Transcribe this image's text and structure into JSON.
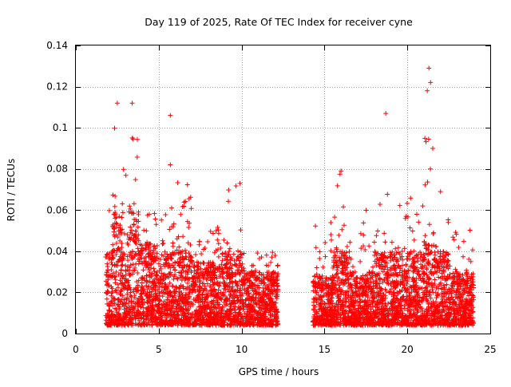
{
  "chart_data": {
    "type": "scatter",
    "title": "Day 119 of 2025, Rate Of TEC Index for receiver cyne",
    "xlabel": "GPS time / hours",
    "ylabel": "ROTI / TECUs",
    "xlim": [
      0,
      25
    ],
    "ylim": [
      0,
      0.14
    ],
    "x_ticks": [
      "0",
      "5",
      "10",
      "15",
      "20",
      "25"
    ],
    "y_ticks": [
      "0",
      "0.02",
      "0.04",
      "0.06",
      "0.08",
      "0.1",
      "0.12",
      "0.14"
    ],
    "grid": true,
    "marker": "+",
    "color": "#ff0000",
    "coverage_hours": [
      [
        1.8,
        12.2
      ],
      [
        14.3,
        24.0
      ]
    ],
    "series": [
      {
        "name": "ROTI",
        "segments": [
          {
            "x_range": [
              1.8,
              2.2
            ],
            "base_max": 0.04,
            "peak": 0.065
          },
          {
            "x_range": [
              2.2,
              2.8
            ],
            "base_max": 0.06,
            "peak": 0.112
          },
          {
            "x_range": [
              2.8,
              3.2
            ],
            "base_max": 0.05,
            "peak": 0.09
          },
          {
            "x_range": [
              3.2,
              3.8
            ],
            "base_max": 0.06,
            "peak": 0.112
          },
          {
            "x_range": [
              3.8,
              5.0
            ],
            "base_max": 0.045,
            "peak": 0.06
          },
          {
            "x_range": [
              5.0,
              6.0
            ],
            "base_max": 0.04,
            "peak": 0.063
          },
          {
            "x_range": [
              6.0,
              7.0
            ],
            "base_max": 0.04,
            "peak": 0.075
          },
          {
            "x_range": [
              7.0,
              9.0
            ],
            "base_max": 0.035,
            "peak": 0.052
          },
          {
            "x_range": [
              9.0,
              10.2
            ],
            "base_max": 0.04,
            "peak": 0.073
          },
          {
            "x_range": [
              10.2,
              12.2
            ],
            "base_max": 0.03,
            "peak": 0.04
          },
          {
            "x_range": [
              14.3,
              15.5
            ],
            "base_max": 0.028,
            "peak": 0.055
          },
          {
            "x_range": [
              15.5,
              16.5
            ],
            "base_max": 0.04,
            "peak": 0.079
          },
          {
            "x_range": [
              16.5,
              18.0
            ],
            "base_max": 0.03,
            "peak": 0.06
          },
          {
            "x_range": [
              18.0,
              20.0
            ],
            "base_max": 0.04,
            "peak": 0.07
          },
          {
            "x_range": [
              20.0,
              21.0
            ],
            "base_max": 0.04,
            "peak": 0.066
          },
          {
            "x_range": [
              21.0,
              21.6
            ],
            "base_max": 0.05,
            "peak": 0.129
          },
          {
            "x_range": [
              21.6,
              22.5
            ],
            "base_max": 0.04,
            "peak": 0.069
          },
          {
            "x_range": [
              22.5,
              24.0
            ],
            "base_max": 0.03,
            "peak": 0.052
          }
        ],
        "outliers": [
          {
            "x": 5.7,
            "y": 0.106
          },
          {
            "x": 5.7,
            "y": 0.082
          },
          {
            "x": 18.7,
            "y": 0.107
          },
          {
            "x": 21.3,
            "y": 0.129
          },
          {
            "x": 21.2,
            "y": 0.118
          },
          {
            "x": 21.4,
            "y": 0.122
          },
          {
            "x": 2.5,
            "y": 0.112
          },
          {
            "x": 3.4,
            "y": 0.112
          },
          {
            "x": 22.0,
            "y": 0.069
          },
          {
            "x": 9.9,
            "y": 0.073
          },
          {
            "x": 16.0,
            "y": 0.079
          }
        ]
      }
    ]
  }
}
